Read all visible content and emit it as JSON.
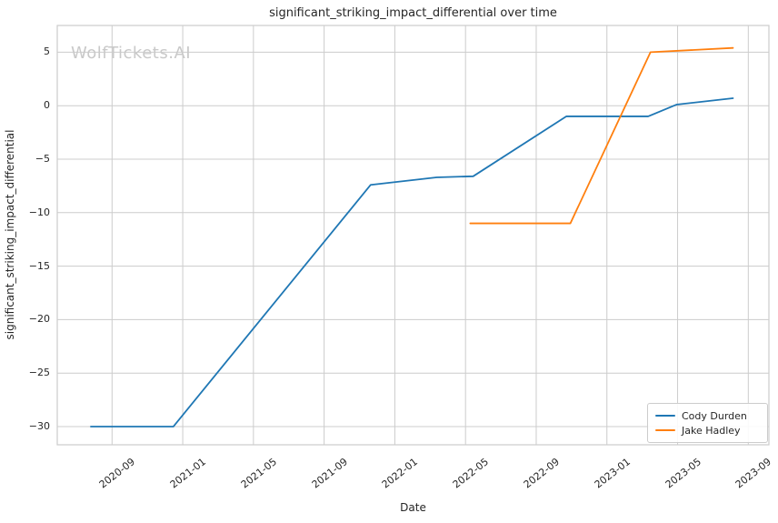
{
  "watermark": "WolfTickets.AI",
  "chart_data": {
    "type": "line",
    "title": "significant_striking_impact_differential over time",
    "xlabel": "Date",
    "ylabel": "significant_striking_impact_differential",
    "x_ticks": [
      "2020-09",
      "2021-01",
      "2021-05",
      "2021-09",
      "2022-01",
      "2022-05",
      "2022-09",
      "2023-01",
      "2023-05",
      "2023-09"
    ],
    "y_ticks": [
      {
        "value": 5,
        "label": "5"
      },
      {
        "value": 0,
        "label": "0"
      },
      {
        "value": -5,
        "label": "−5"
      },
      {
        "value": -10,
        "label": "−10"
      },
      {
        "value": -15,
        "label": "−15"
      },
      {
        "value": -20,
        "label": "−20"
      },
      {
        "value": -25,
        "label": "−25"
      },
      {
        "value": -30,
        "label": "−30"
      }
    ],
    "xlim": [
      "2020-05-28",
      "2023-10-06"
    ],
    "ylim": [
      -31.7,
      7.5
    ],
    "grid": true,
    "legend_position": "lower-right",
    "colors": {
      "grid": "#cccccc",
      "axis_border": "#cccccc",
      "text": "#262626",
      "watermark": "#c9c9c9"
    },
    "series": [
      {
        "name": "Cody Durden",
        "color": "#1f77b4",
        "points": [
          {
            "date": "2020-07-25",
            "value": -30.0
          },
          {
            "date": "2020-12-15",
            "value": -30.0
          },
          {
            "date": "2021-11-20",
            "value": -7.4
          },
          {
            "date": "2022-03-12",
            "value": -6.7
          },
          {
            "date": "2022-05-14",
            "value": -6.6
          },
          {
            "date": "2022-10-22",
            "value": -1.0
          },
          {
            "date": "2023-03-11",
            "value": -1.0
          },
          {
            "date": "2023-04-29",
            "value": 0.1
          },
          {
            "date": "2023-08-05",
            "value": 0.7
          }
        ]
      },
      {
        "name": "Jake Hadley",
        "color": "#ff7f0e",
        "points": [
          {
            "date": "2022-05-09",
            "value": -11.0
          },
          {
            "date": "2022-10-29",
            "value": -11.0
          },
          {
            "date": "2023-03-15",
            "value": 5.0
          },
          {
            "date": "2023-08-05",
            "value": 5.4
          }
        ]
      }
    ]
  }
}
